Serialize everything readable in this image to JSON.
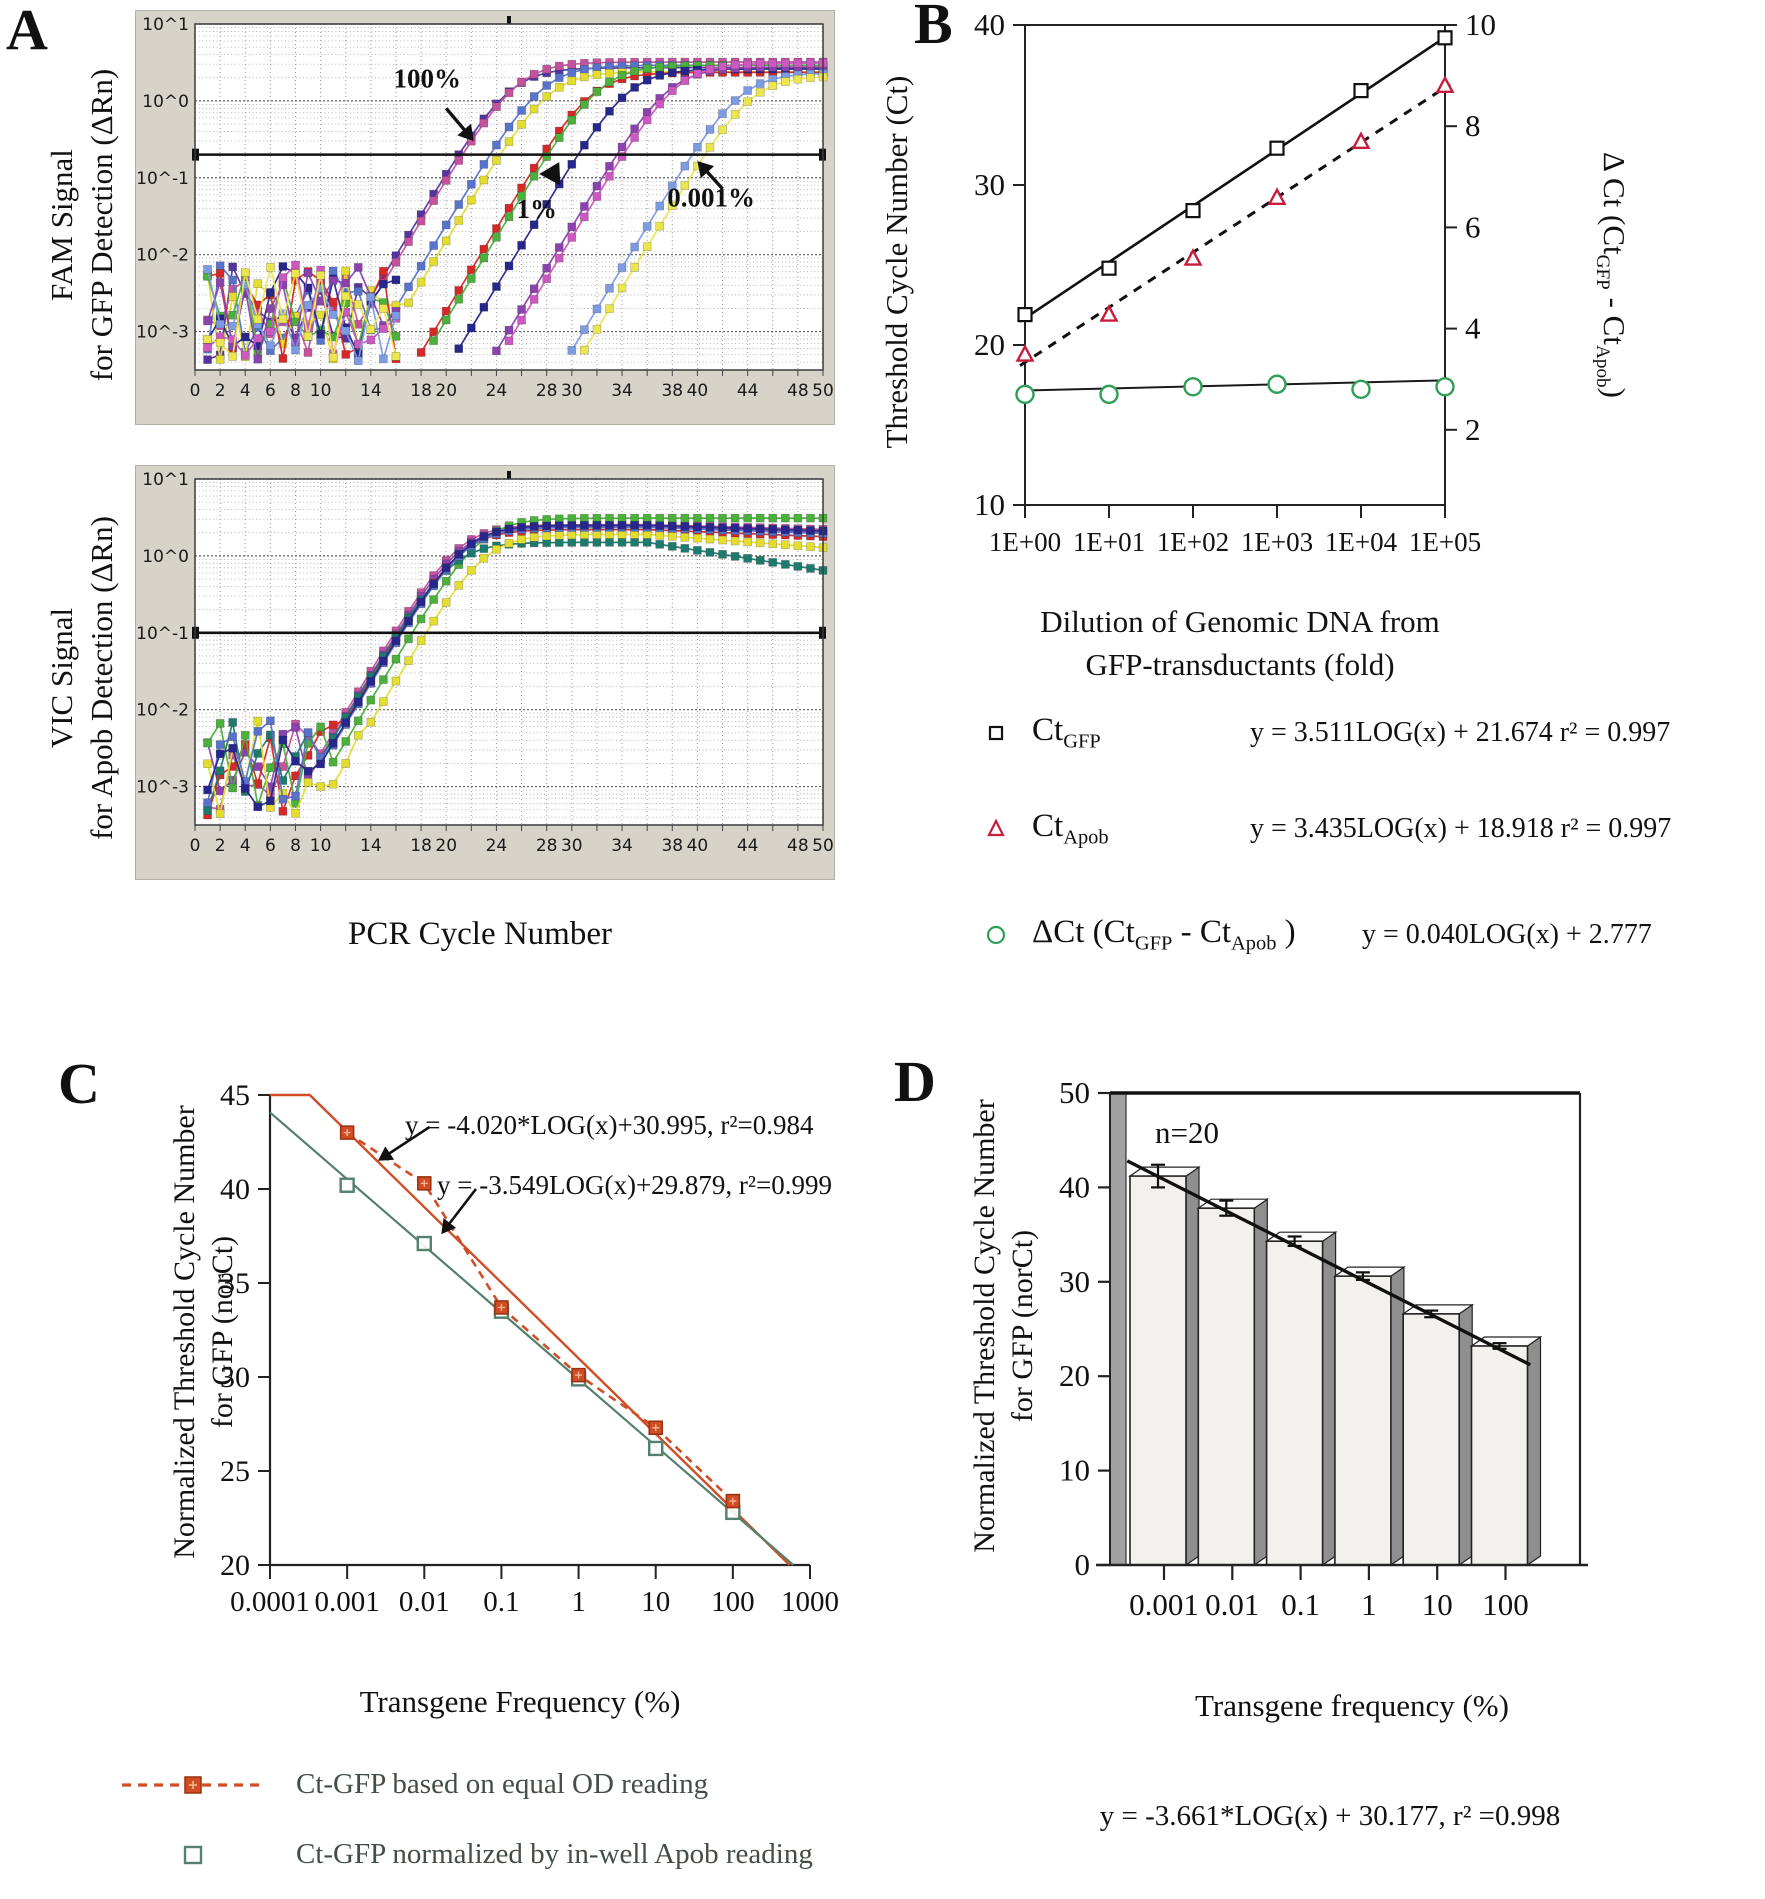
{
  "panelA": {
    "label": "A",
    "fam_axis": "FAM Signal\nfor GFP Detection (ΔRn)",
    "vic_axis": "VIC Signal\nfor Apob Detection (ΔRn)",
    "x_title": "PCR Cycle Number"
  },
  "panelB": {
    "label": "B",
    "left_axis": "Threshold Cycle Number (Ct)",
    "right_axis_parts": [
      "Δ Ct (Ct",
      "GFP",
      " -  Ct",
      "Apob",
      ")"
    ],
    "x_title_line1": "Dilution of Genomic DNA from",
    "x_title_line2": "GFP-transductants (fold)",
    "legend": [
      {
        "name_parts": [
          "Ct",
          "GFP"
        ],
        "eq": "y = 3.511LOG(x) + 21.674   r² = 0.997"
      },
      {
        "name_parts": [
          "Ct",
          "Apob"
        ],
        "eq": "y = 3.435LOG(x) + 18.918   r² = 0.997"
      },
      {
        "name_parts": [
          "ΔCt  (Ct",
          "GFP",
          " -  Ct",
          "Apob",
          " )"
        ],
        "eq": "y = 0.040LOG(x) + 2.777"
      }
    ]
  },
  "panelC": {
    "label": "C",
    "y_axis": "Normalized Threshold Cycle Number\nfor GFP (norCt)",
    "x_title": "Transgene Frequency (%)",
    "eq1": "y = -4.020*LOG(x)+30.995, r²=0.984",
    "eq2": "y = -3.549LOG(x)+29.879, r²=0.999",
    "legend": [
      {
        "label": "Ct-GFP based on equal OD reading"
      },
      {
        "label": "Ct-GFP normalized by in-well Apob reading"
      }
    ]
  },
  "panelD": {
    "label": "D",
    "y_axis": "Normalized Threshold Cycle Number\nfor GFP (norCt)",
    "x_title": "Transgene frequency (%)",
    "eq": "y = -3.661*LOG(x) + 30.177,   r² =0.998"
  },
  "chart_data": [
    {
      "id": "fam-amplification",
      "type": "line",
      "ylabel": "FAM Signal for GFP Detection (ΔRn)",
      "xlabel": "PCR Cycle Number",
      "y_scale": "log",
      "x_range": [
        0,
        50
      ],
      "x_ticks": [
        0,
        2,
        4,
        6,
        8,
        10,
        14,
        18,
        20,
        24,
        28,
        30,
        34,
        38,
        40,
        44,
        48,
        50
      ],
      "y_ticks": [
        {
          "label": "10^1",
          "L": 1
        },
        {
          "label": "10^0",
          "L": 0
        },
        {
          "label": "10^-1",
          "L": -1
        },
        {
          "label": "10^-2",
          "L": -2
        },
        {
          "label": "10^-3",
          "L": -3
        }
      ],
      "threshold": 0.2,
      "noise_cut": 16,
      "seed": 7,
      "series": [
        {
          "color": "#5435a0",
          "ct": 21.0,
          "plateau": 2.7
        },
        {
          "color": "#c4539e",
          "ct": 21.3,
          "plateau": 3.2
        },
        {
          "color": "#5873cc",
          "ct": 23.5,
          "plateau": 2.9
        },
        {
          "color": "#e3dd30",
          "ct": 24.3,
          "plateau": 2.4
        },
        {
          "color": "#d52828",
          "ct": 27.7,
          "plateau": 2.35
        },
        {
          "color": "#4cb03c",
          "ct": 28.1,
          "plateau": 2.9
        },
        {
          "color": "#26268c",
          "ct": 30.5,
          "plateau": 2.6
        },
        {
          "color": "#8a43ae",
          "ct": 33.6,
          "plateau": 2.75
        },
        {
          "color": "#cc59c0",
          "ct": 34.1,
          "plateau": 3.1
        },
        {
          "color": "#7d9be0",
          "ct": 39.6,
          "plateau": 2.3
        },
        {
          "color": "#ece64e",
          "ct": 40.6,
          "plateau": 2.1
        }
      ],
      "annotations": [
        {
          "text": "100%",
          "tc": 15.8,
          "tv": 1.5,
          "arrow": {
            "tailc": 20.0,
            "tailv": 0.8,
            "tipc": 22.2,
            "tipv": 0.3
          }
        },
        {
          "text": "1%",
          "tc": 25.6,
          "tv": 0.03,
          "head_only": true,
          "arrow": {
            "tailc": 28.4,
            "tailv": 0.105,
            "tipc": 29.0,
            "tipv": 0.16
          }
        },
        {
          "text": "0.001%",
          "tc": 37.6,
          "tv": 0.042,
          "arrow": {
            "tailc": 42.0,
            "tailv": 0.072,
            "tipc": 40.0,
            "tipv": 0.165
          }
        }
      ]
    },
    {
      "id": "vic-amplification",
      "type": "line",
      "ylabel": "VIC Signal for Apob Detection (ΔRn)",
      "xlabel": "PCR Cycle Number",
      "y_scale": "log",
      "x_range": [
        0,
        50
      ],
      "x_ticks": [
        0,
        2,
        4,
        6,
        8,
        10,
        14,
        18,
        20,
        24,
        28,
        30,
        34,
        38,
        40,
        44,
        48,
        50
      ],
      "y_ticks": [
        {
          "label": "10^1",
          "L": 1
        },
        {
          "label": "10^0",
          "L": 0
        },
        {
          "label": "10^-1",
          "L": -1
        },
        {
          "label": "10^-2",
          "L": -2
        },
        {
          "label": "10^-3",
          "L": -3
        }
      ],
      "threshold": 0.1,
      "noise_cut": 18,
      "seed": 23,
      "series": [
        {
          "color": "#c4539e",
          "ct": 15.9,
          "plateau": 2.55,
          "decay": 0.01
        },
        {
          "color": "#8a43ae",
          "ct": 16.1,
          "plateau": 2.4,
          "decay": 0.012
        },
        {
          "color": "#d52828",
          "ct": 16.3,
          "plateau": 2.2,
          "decay": 0.015
        },
        {
          "color": "#4cb03c",
          "ct": 17.3,
          "plateau": 3.1,
          "decay": 0.0
        },
        {
          "color": "#1f7a6e",
          "ct": 16.2,
          "plateau": 1.5,
          "decay": 0.06
        },
        {
          "color": "#e3dd30",
          "ct": 18.4,
          "plateau": 1.9,
          "decay": 0.028
        },
        {
          "color": "#5873cc",
          "ct": 16.5,
          "plateau": 2.35,
          "decay": 0.013
        },
        {
          "color": "#26268c",
          "ct": 16.4,
          "plateau": 2.5,
          "decay": 0.012
        }
      ],
      "annotations": []
    },
    {
      "id": "panel-b-standard-curve",
      "type": "scatter",
      "xlabel": "Dilution of Genomic DNA from GFP-transductants (fold)",
      "ylabel_left": "Threshold Cycle Number (Ct)",
      "ylabel_right": "Δ Ct (CtGFP - CtApob)",
      "x_labels": [
        "1E+00",
        "1E+01",
        "1E+02",
        "1E+03",
        "1E+04",
        "1E+05"
      ],
      "x_log": [
        0,
        1,
        2,
        3,
        4,
        5
      ],
      "left_ticks": [
        10,
        20,
        30,
        40
      ],
      "right_ticks": [
        2,
        4,
        6,
        8,
        10
      ],
      "series": [
        {
          "name": "CtGFP",
          "marker": "square",
          "color": "#111111",
          "line": "solid",
          "values": [
            21.9,
            24.8,
            28.4,
            32.3,
            35.9,
            39.2
          ],
          "fit": {
            "slope": 3.511,
            "intercept": 21.674,
            "r2": 0.997
          }
        },
        {
          "name": "CtApob",
          "marker": "triangle",
          "color": "#c81c3c",
          "line": "dashed",
          "values": [
            19.4,
            21.9,
            25.4,
            29.2,
            32.7,
            36.2
          ],
          "fit": {
            "slope": 3.435,
            "intercept": 18.918,
            "r2": 0.997
          }
        },
        {
          "name": "ΔCt (CtGFP - CtApob)",
          "marker": "circle",
          "color": "#2f9e57",
          "axis": "right",
          "values": [
            2.7,
            2.7,
            2.85,
            2.9,
            2.8,
            2.85
          ],
          "fit": {
            "slope": 0.04,
            "intercept": 2.777
          }
        }
      ]
    },
    {
      "id": "panel-c-dilution-lines",
      "type": "scatter",
      "xlabel": "Transgene Frequency (%)",
      "ylabel": "Normalized Threshold Cycle Number for GFP (norCt)",
      "x_tick_labels": [
        "0.0001",
        "0.001",
        "0.01",
        "0.1",
        "1",
        "10",
        "100",
        "1000"
      ],
      "x_tick_log": [
        -4,
        -3,
        -2,
        -1,
        0,
        1,
        2,
        3
      ],
      "y_ticks": [
        20,
        25,
        30,
        35,
        40,
        45
      ],
      "ylim": [
        20,
        45
      ],
      "x_points_log": [
        -3,
        -2,
        -1,
        0,
        1,
        2
      ],
      "series": [
        {
          "name": "Ct-GFP based on equal OD reading",
          "color": "#cf4e26",
          "marker": "filled-square",
          "line": "dashed",
          "values": [
            43.0,
            40.3,
            33.7,
            30.1,
            27.3,
            23.4
          ],
          "fit": {
            "slope": -4.02,
            "intercept": 30.995,
            "r2": 0.984
          }
        },
        {
          "name": "Ct-GFP normalized by in-well Apob reading",
          "color": "#55806d",
          "marker": "open-square",
          "line": "solid",
          "values": [
            40.2,
            37.1,
            33.5,
            29.9,
            26.2,
            22.8
          ],
          "fit": {
            "slope": -3.549,
            "intercept": 29.879,
            "r2": 0.999
          }
        }
      ],
      "arrows": [
        {
          "tail": [
            -1.93,
            43.3
          ],
          "tip": [
            -2.6,
            41.5
          ]
        },
        {
          "tail": [
            -1.33,
            40.0
          ],
          "tip": [
            -1.78,
            37.6
          ]
        }
      ]
    },
    {
      "id": "panel-d-bars",
      "type": "bar",
      "xlabel": "Transgene frequency (%)",
      "ylabel": "Normalized Threshold Cycle Number for GFP (norCt)",
      "categories": [
        "0.001",
        "0.01",
        "0.1",
        "1",
        "10",
        "100"
      ],
      "cat_log": [
        -3,
        -2,
        -1,
        0,
        1,
        2
      ],
      "values": [
        41.2,
        37.8,
        34.3,
        30.6,
        26.6,
        23.2
      ],
      "errors": [
        1.2,
        0.8,
        0.5,
        0.4,
        0.35,
        0.3
      ],
      "y_ticks": [
        0,
        10,
        20,
        30,
        40,
        50
      ],
      "ylim": [
        0,
        50
      ],
      "annotation": "n=20",
      "fit": {
        "slope": -3.661,
        "intercept": 30.177,
        "r2": 0.998
      }
    }
  ]
}
